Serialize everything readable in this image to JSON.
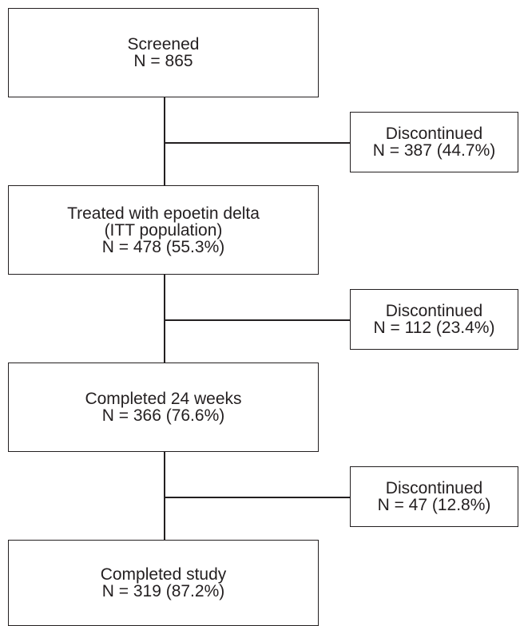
{
  "flowchart": {
    "screened": {
      "line1": "Screened",
      "line2": "N = 865"
    },
    "discontinued_1": {
      "line1": "Discontinued",
      "line2": "N = 387 (44.7%)"
    },
    "treated": {
      "line1": "Treated with epoetin delta",
      "line2": "(ITT population)",
      "line3": "N = 478 (55.3%)"
    },
    "discontinued_2": {
      "line1": "Discontinued",
      "line2": "N = 112 (23.4%)"
    },
    "completed_24_weeks": {
      "line1": "Completed 24 weeks",
      "line2": "N = 366 (76.6%)"
    },
    "discontinued_3": {
      "line1": "Discontinued",
      "line2": "N = 47 (12.8%)"
    },
    "completed_study": {
      "line1": "Completed study",
      "line2": "N = 319 (87.2%)"
    }
  }
}
